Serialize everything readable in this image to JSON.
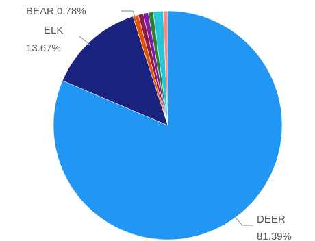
{
  "chart_data": {
    "type": "pie",
    "title": "",
    "slices": [
      {
        "label": "DEER",
        "value": 81.39,
        "color": "#2196f3"
      },
      {
        "label": "ELK",
        "value": 13.67,
        "color": "#1a237e"
      },
      {
        "label": "BEAR",
        "value": 0.78,
        "color": "#e65100"
      },
      {
        "label": "",
        "value": 0.72,
        "color": "#8e1a4a"
      },
      {
        "label": "",
        "value": 0.7,
        "color": "#7b1fa2"
      },
      {
        "label": "",
        "value": 0.7,
        "color": "#2e7d32"
      },
      {
        "label": "",
        "value": 1.4,
        "color": "#26c6da"
      },
      {
        "label": "",
        "value": 0.64,
        "color": "#ff8a80"
      }
    ],
    "data_labels": [
      {
        "slice": "BEAR",
        "lines": [
          "BEAR 0.78%"
        ]
      },
      {
        "slice": "ELK",
        "lines": [
          "ELK",
          "13.67%"
        ]
      },
      {
        "slice": "DEER",
        "lines": [
          "DEER",
          "81.39%"
        ]
      }
    ],
    "start_angle": "12 o'clock",
    "direction": "clockwise",
    "legend": "none"
  }
}
